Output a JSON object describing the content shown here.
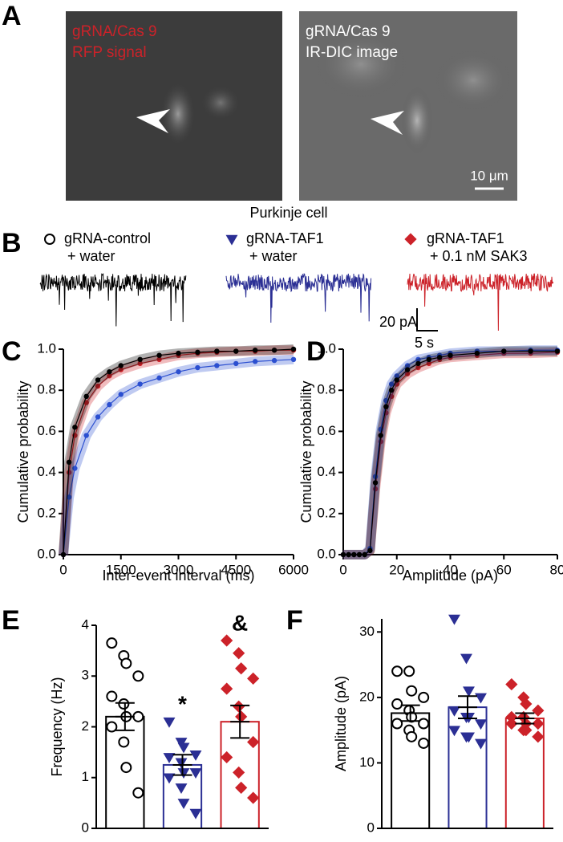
{
  "panel_a": {
    "panel_label": "A",
    "left": {
      "line1": "gRNA/Cas 9",
      "line2": "RFP signal"
    },
    "right": {
      "line1": "gRNA/Cas 9",
      "line2": "IR-DIC image",
      "scale": "10 μm"
    },
    "caption": "Purkinje cell"
  },
  "panel_b": {
    "panel_label": "B",
    "legend": [
      {
        "line1": "gRNA-control",
        "line2": "+ water",
        "color": "#000000",
        "marker": "circle",
        "filled": false
      },
      {
        "line1": "gRNA-TAF1",
        "line2": "+ water",
        "color": "#2b2f94",
        "marker": "triangle_down",
        "filled": true
      },
      {
        "line1": "gRNA-TAF1",
        "line2": "+ 0.1 nM SAK3",
        "color": "#cc2229",
        "marker": "diamond",
        "filled": true
      }
    ],
    "scale_y": "20 pA",
    "scale_x": "5 s"
  },
  "chart_data": [
    {
      "type": "line",
      "panel_label": "C",
      "xlabel": "Inter-event interval (ms)",
      "ylabel": "Cumulative probability",
      "xlim": [
        0,
        6000
      ],
      "xticks": [
        0,
        1500,
        3000,
        4500,
        6000
      ],
      "ylim": [
        0,
        1
      ],
      "yticks": [
        {
          "value": 0,
          "label": "0.0"
        },
        0.2,
        0.4,
        0.6,
        0.8,
        {
          "value": 1,
          "label": "1.0"
        }
      ],
      "x": [
        0,
        150,
        300,
        600,
        900,
        1200,
        1500,
        2000,
        2500,
        3000,
        3500,
        4000,
        4500,
        5000,
        5500,
        6000
      ],
      "series": [
        {
          "color": "#cc2229",
          "values": [
            0,
            0.4,
            0.58,
            0.74,
            0.82,
            0.87,
            0.9,
            0.93,
            0.95,
            0.97,
            0.98,
            0.985,
            0.99,
            0.99,
            0.995,
            0.995
          ]
        },
        {
          "color": "#2b4fd0",
          "values": [
            0,
            0.28,
            0.42,
            0.58,
            0.67,
            0.73,
            0.78,
            0.83,
            0.86,
            0.89,
            0.91,
            0.92,
            0.93,
            0.94,
            0.945,
            0.95
          ]
        },
        {
          "color": "#000000",
          "values": [
            0,
            0.45,
            0.62,
            0.77,
            0.85,
            0.89,
            0.92,
            0.95,
            0.97,
            0.98,
            0.985,
            0.99,
            0.99,
            0.995,
            0.995,
            1.0
          ]
        }
      ]
    },
    {
      "type": "line",
      "panel_label": "D",
      "xlabel": "Amplitude (pA)",
      "ylabel": "Cumulative probability",
      "xlim": [
        0,
        80
      ],
      "xticks": [
        0,
        20,
        40,
        60,
        80
      ],
      "ylim": [
        0,
        1
      ],
      "yticks": [
        {
          "value": 0,
          "label": "0.0"
        },
        0.2,
        0.4,
        0.6,
        0.8,
        {
          "value": 1,
          "label": "1.0"
        }
      ],
      "x": [
        0,
        2,
        4,
        6,
        8,
        10,
        12,
        14,
        16,
        18,
        20,
        24,
        28,
        32,
        36,
        40,
        50,
        60,
        70,
        80
      ],
      "series": [
        {
          "color": "#cc2229",
          "values": [
            0,
            0,
            0,
            0,
            0,
            0.02,
            0.32,
            0.55,
            0.69,
            0.77,
            0.83,
            0.88,
            0.91,
            0.93,
            0.95,
            0.96,
            0.97,
            0.98,
            0.98,
            0.985
          ]
        },
        {
          "color": "#2b4fd0",
          "values": [
            0,
            0,
            0,
            0,
            0,
            0.03,
            0.38,
            0.61,
            0.75,
            0.83,
            0.87,
            0.92,
            0.95,
            0.96,
            0.97,
            0.98,
            0.99,
            0.99,
            0.995,
            0.995
          ]
        },
        {
          "color": "#000000",
          "values": [
            0,
            0,
            0,
            0,
            0,
            0.02,
            0.35,
            0.58,
            0.72,
            0.8,
            0.85,
            0.9,
            0.93,
            0.95,
            0.96,
            0.97,
            0.98,
            0.99,
            0.99,
            0.99
          ]
        }
      ]
    },
    {
      "type": "bar",
      "panel_label": "E",
      "ylabel": "Frequency (Hz)",
      "ylim": [
        0,
        4
      ],
      "yticks": [
        0,
        1,
        2,
        3,
        4
      ],
      "categories": [
        null,
        null,
        null
      ],
      "values": [
        2.2,
        1.25,
        2.1
      ],
      "errors": [
        0.27,
        0.2,
        0.32
      ],
      "annotations": [
        null,
        "*",
        "&"
      ],
      "colors": [
        "#000000",
        "#2b2f94",
        "#cc2229"
      ],
      "markers": [
        "circle",
        "triangle_down",
        "diamond"
      ],
      "filled": [
        false,
        true,
        true
      ],
      "points": [
        [
          3.65,
          3.4,
          3.25,
          3.0,
          2.6,
          2.45,
          2.2,
          2.2,
          2.0,
          1.7,
          1.2,
          0.7
        ],
        [
          2.1,
          1.7,
          1.6,
          1.45,
          1.4,
          1.3,
          1.1,
          1.1,
          1.0,
          0.8,
          0.5,
          0.3
        ],
        [
          3.7,
          3.45,
          3.15,
          2.95,
          2.75,
          2.4,
          2.2,
          1.7,
          1.4,
          1.1,
          0.8,
          0.6
        ]
      ]
    },
    {
      "type": "bar",
      "panel_label": "F",
      "ylabel": "Amplitude (pA)",
      "ylim": [
        0,
        32
      ],
      "yticks": [
        0,
        10,
        20,
        30
      ],
      "categories": [
        null,
        null,
        null
      ],
      "values": [
        17.6,
        18.5,
        16.8
      ],
      "errors": [
        1.2,
        1.7,
        0.8
      ],
      "annotations": [
        null,
        null,
        null
      ],
      "colors": [
        "#000000",
        "#2b2f94",
        "#cc2229"
      ],
      "markers": [
        "circle",
        "triangle_down",
        "diamond"
      ],
      "filled": [
        false,
        true,
        true
      ],
      "points": [
        [
          24,
          24,
          21,
          20,
          19,
          18,
          17,
          16,
          16,
          15,
          14,
          13
        ],
        [
          32,
          26,
          21,
          20,
          18,
          17,
          17,
          16,
          15,
          14,
          14,
          13
        ],
        [
          22,
          20,
          19,
          18,
          17,
          17,
          16,
          16,
          16,
          15,
          15,
          14
        ]
      ]
    }
  ]
}
